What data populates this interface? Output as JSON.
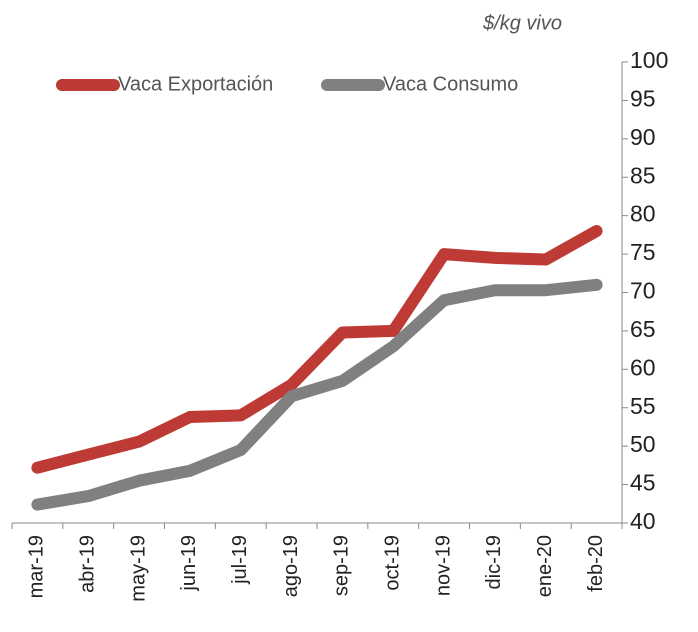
{
  "chart_data": {
    "type": "line",
    "y_label": "$/kg  vivo",
    "categories": [
      "mar-19",
      "abr-19",
      "may-19",
      "jun-19",
      "jul-19",
      "ago-19",
      "sep-19",
      "oct-19",
      "nov-19",
      "dic-19",
      "ene-20",
      "feb-20"
    ],
    "series": [
      {
        "name": "Vaca Exportación",
        "color": "#be3a34",
        "values": [
          47.2,
          48.9,
          50.6,
          53.8,
          54.0,
          58.0,
          64.8,
          65.0,
          75.0,
          74.5,
          74.3,
          78.0
        ]
      },
      {
        "name": "Vaca Consumo",
        "color": "#808080",
        "values": [
          42.4,
          43.5,
          45.5,
          46.8,
          49.5,
          56.5,
          58.5,
          63.0,
          69.0,
          70.3,
          70.3,
          71.0
        ]
      }
    ],
    "ylim": [
      40,
      100
    ],
    "yticks": [
      40,
      45,
      50,
      55,
      60,
      65,
      70,
      75,
      80,
      85,
      90,
      95,
      100
    ],
    "y_axis_side": "right",
    "legend": "top-left",
    "grid": false
  }
}
